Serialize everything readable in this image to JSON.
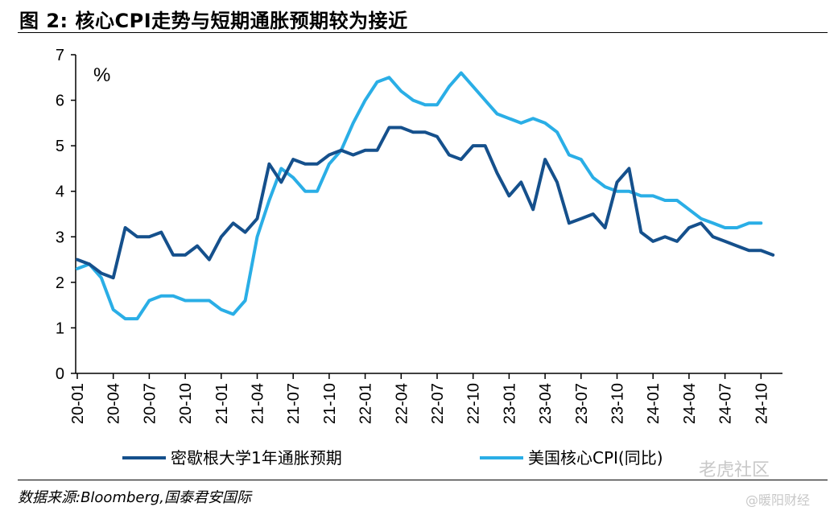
{
  "title": "图 2:  核心CPI走势与短期通胀预期较为接近",
  "source": "数据来源:Bloomberg,国泰君安国际",
  "watermark": {
    "main": "老虎社区",
    "sub": "@暖阳财经"
  },
  "colors": {
    "series_dark": "#15508c",
    "series_light": "#2aaee6",
    "axis": "#000000"
  },
  "chart_data": {
    "type": "line",
    "unit_label": "%",
    "ylim": [
      0,
      7
    ],
    "yticks": [
      0,
      1,
      2,
      3,
      4,
      5,
      6,
      7
    ],
    "xtick_labels": [
      "20-01",
      "20-04",
      "20-07",
      "20-10",
      "21-01",
      "21-04",
      "21-07",
      "21-10",
      "22-01",
      "22-04",
      "22-07",
      "22-10",
      "23-01",
      "23-04",
      "23-07",
      "23-10",
      "24-01",
      "24-04",
      "24-07",
      "24-10"
    ],
    "grid": false,
    "legend_position": "bottom",
    "series": [
      {
        "name": "密歇根大学1年通胀预期",
        "color": "#15508c",
        "x": [
          "2020-01",
          "2020-02",
          "2020-03",
          "2020-04",
          "2020-05",
          "2020-06",
          "2020-07",
          "2020-08",
          "2020-09",
          "2020-10",
          "2020-11",
          "2020-12",
          "2021-01",
          "2021-02",
          "2021-03",
          "2021-04",
          "2021-05",
          "2021-06",
          "2021-07",
          "2021-08",
          "2021-09",
          "2021-10",
          "2021-11",
          "2021-12",
          "2022-01",
          "2022-02",
          "2022-03",
          "2022-04",
          "2022-05",
          "2022-06",
          "2022-07",
          "2022-08",
          "2022-09",
          "2022-10",
          "2022-11",
          "2022-12",
          "2023-01",
          "2023-02",
          "2023-03",
          "2023-04",
          "2023-05",
          "2023-06",
          "2023-07",
          "2023-08",
          "2023-09",
          "2023-10",
          "2023-11",
          "2023-12",
          "2024-01",
          "2024-02",
          "2024-03",
          "2024-04",
          "2024-05",
          "2024-06",
          "2024-07",
          "2024-08",
          "2024-09",
          "2024-10",
          "2024-11"
        ],
        "values": [
          2.5,
          2.4,
          2.2,
          2.1,
          3.2,
          3.0,
          3.0,
          3.1,
          2.6,
          2.6,
          2.8,
          2.5,
          3.0,
          3.3,
          3.1,
          3.4,
          4.6,
          4.2,
          4.7,
          4.6,
          4.6,
          4.8,
          4.9,
          4.8,
          4.9,
          4.9,
          5.4,
          5.4,
          5.3,
          5.3,
          5.2,
          4.8,
          4.7,
          5.0,
          5.0,
          4.4,
          3.9,
          4.2,
          3.6,
          4.7,
          4.2,
          3.3,
          3.4,
          3.5,
          3.2,
          4.2,
          4.5,
          3.1,
          2.9,
          3.0,
          2.9,
          3.2,
          3.3,
          3.0,
          2.9,
          2.8,
          2.7,
          2.7,
          2.6
        ]
      },
      {
        "name": "美国核心CPI(同比)",
        "color": "#2aaee6",
        "x": [
          "2020-01",
          "2020-02",
          "2020-03",
          "2020-04",
          "2020-05",
          "2020-06",
          "2020-07",
          "2020-08",
          "2020-09",
          "2020-10",
          "2020-11",
          "2020-12",
          "2021-01",
          "2021-02",
          "2021-03",
          "2021-04",
          "2021-05",
          "2021-06",
          "2021-07",
          "2021-08",
          "2021-09",
          "2021-10",
          "2021-11",
          "2021-12",
          "2022-01",
          "2022-02",
          "2022-03",
          "2022-04",
          "2022-05",
          "2022-06",
          "2022-07",
          "2022-08",
          "2022-09",
          "2022-10",
          "2022-11",
          "2022-12",
          "2023-01",
          "2023-02",
          "2023-03",
          "2023-04",
          "2023-05",
          "2023-06",
          "2023-07",
          "2023-08",
          "2023-09",
          "2023-10",
          "2023-11",
          "2023-12",
          "2024-01",
          "2024-02",
          "2024-03",
          "2024-04",
          "2024-05",
          "2024-06",
          "2024-07",
          "2024-08",
          "2024-09",
          "2024-10"
        ],
        "values": [
          2.3,
          2.4,
          2.1,
          1.4,
          1.2,
          1.2,
          1.6,
          1.7,
          1.7,
          1.6,
          1.6,
          1.6,
          1.4,
          1.3,
          1.6,
          3.0,
          3.8,
          4.5,
          4.3,
          4.0,
          4.0,
          4.6,
          4.9,
          5.5,
          6.0,
          6.4,
          6.5,
          6.2,
          6.0,
          5.9,
          5.9,
          6.3,
          6.6,
          6.3,
          6.0,
          5.7,
          5.6,
          5.5,
          5.6,
          5.5,
          5.3,
          4.8,
          4.7,
          4.3,
          4.1,
          4.0,
          4.0,
          3.9,
          3.9,
          3.8,
          3.8,
          3.6,
          3.4,
          3.3,
          3.2,
          3.2,
          3.3,
          3.3
        ]
      }
    ]
  }
}
